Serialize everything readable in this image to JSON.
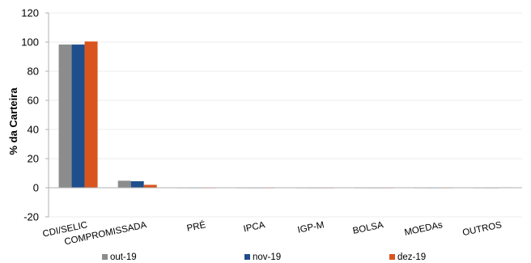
{
  "chart_data": {
    "type": "bar",
    "title": "",
    "xlabel": "",
    "ylabel": "% da Carteira",
    "ylim": [
      -20,
      120
    ],
    "yticks": [
      -20,
      0,
      20,
      40,
      60,
      80,
      100,
      120
    ],
    "grid": true,
    "legend_position": "bottom",
    "categories": [
      "CDI/SELIC",
      "COMPROMISSADA",
      "PRÉ",
      "IPCA",
      "IGP-M",
      "BOLSA",
      "MOEDAs",
      "OUTROS"
    ],
    "series": [
      {
        "name": "out-19",
        "color": "#8c8c8c",
        "values": [
          98.3,
          4.8,
          0,
          0,
          0,
          0,
          0,
          -0.2
        ]
      },
      {
        "name": "nov-19",
        "color": "#1f4e8c",
        "values": [
          98.3,
          4.5,
          0,
          0,
          0,
          0,
          0,
          -0.2
        ]
      },
      {
        "name": "dez-19",
        "color": "#d9541e",
        "values": [
          100.4,
          2.0,
          0,
          0,
          0,
          0,
          0,
          0.3
        ]
      }
    ]
  }
}
